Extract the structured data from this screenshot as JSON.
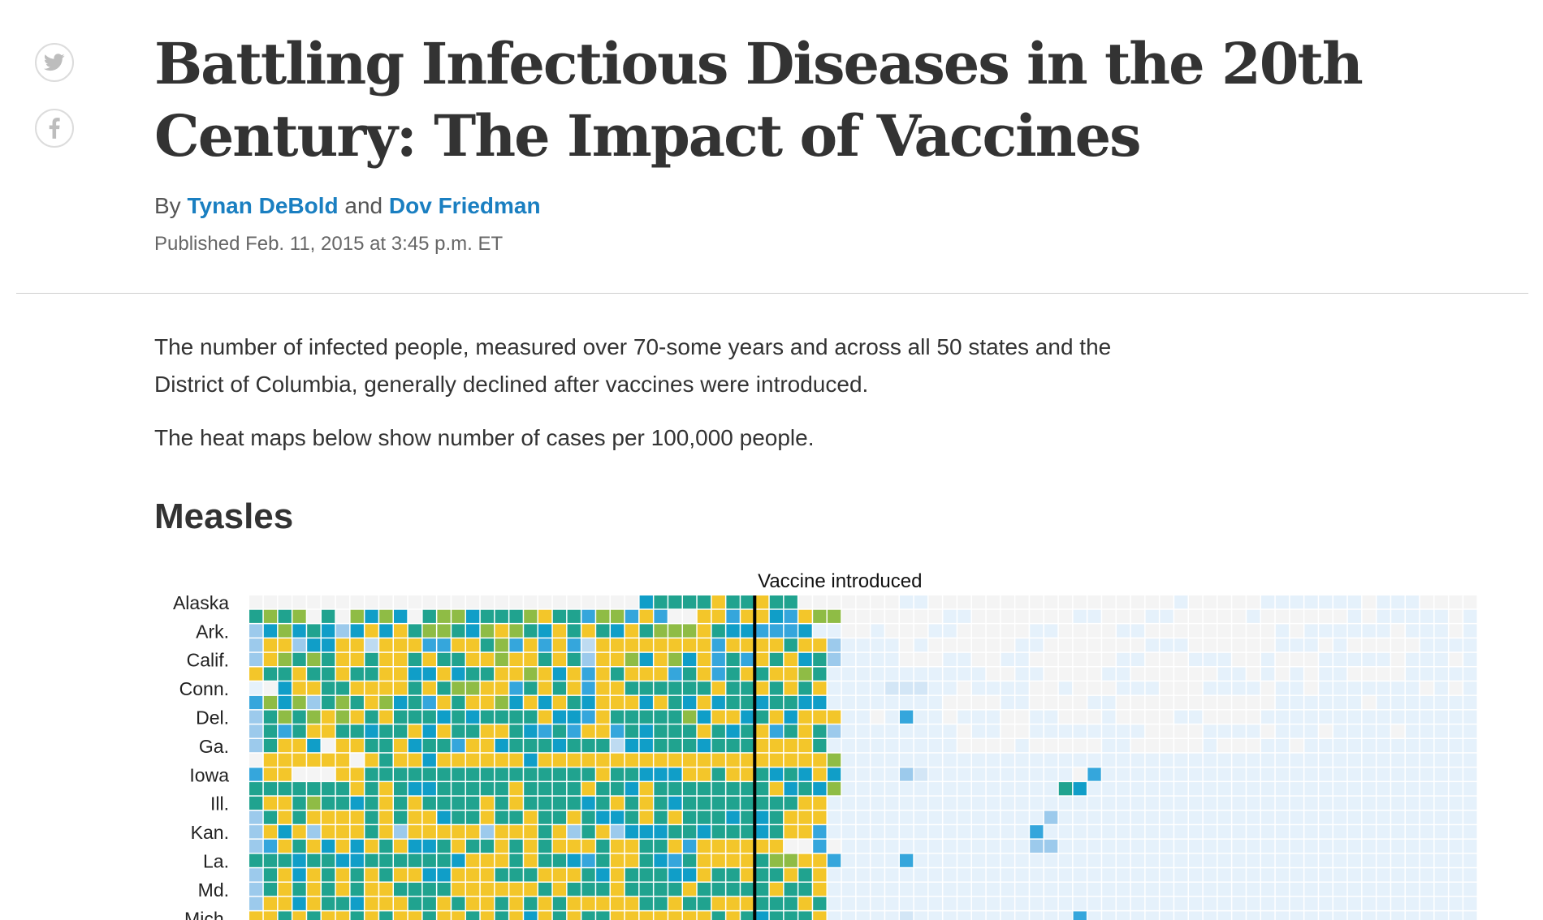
{
  "share": {
    "twitter_icon": "twitter-bird-icon",
    "facebook_icon": "facebook-f-icon"
  },
  "article": {
    "title": "Battling Infectious Diseases in the 20th Century: The Impact of Vaccines",
    "byline_prefix": "By",
    "author1": "Tynan DeBold",
    "byline_and": "and",
    "author2": "Dov Friedman",
    "published": "Published Feb. 11, 2015 at 3:45 p.m. ET",
    "intro": "The number of infected people, measured over 70-some years and across all 50 states and the District of Columbia, generally declined after vaccines were introduced.",
    "intro2": "The heat maps below show number of cases per 100,000 people.",
    "section_title": "Measles"
  },
  "colors": {
    "author_link": "#1a7fc1",
    "text": "#333333",
    "divider": "#cfcfcf",
    "scale": [
      "#f4f4f4",
      "#e5f1fb",
      "#d3e6f6",
      "#bedbf1",
      "#9ccaec",
      "#35a6dc",
      "#109ec8",
      "#20a38f",
      "#8fbc45",
      "#f3c62a",
      "#e7a62a"
    ],
    "vaccine_line": "#000000"
  },
  "chart_data": {
    "type": "heatmap",
    "title": "Measles",
    "annotation": "Vaccine introduced",
    "vaccine_after_column": 35,
    "columns_visible": 85,
    "row_labels": [
      "Alaska",
      "",
      "Ark.",
      "",
      "Calif.",
      "",
      "Conn.",
      "",
      "Del.",
      "",
      "Ga.",
      "",
      "Iowa",
      "",
      "Ill.",
      "",
      "Kan.",
      "",
      "La.",
      "",
      "Md.",
      "",
      "Mich.",
      ""
    ],
    "levels": [
      "00000000000000000000000000067777977977000000011000000000000000001000001111111011100001111111111111111111111",
      "78780708686078867778977588595009959965988000000011000000011000110000010000001011111011111111111111111111111",
      "46867646969788768987697976978889766555611001000110000011000011000000000101111110111011111111111111111111111",
      "49946699399955997859595399999999599997994111101000000110000000111000000111010000011111111111111111111111111",
      "49878799799797799899797499869869575979674111100011001100000011000111001000111110111011111111111111111111111",
      "97797797799669677998969597999579579799871111111111100110000110000001101010110000111111111111111111111111111",
      "10699779999797889957979599777777977979791111222110111100100011100011110110111111101011111111111111111111111",
      "58684787986759799869697699969769677677661111111100001100001100000000000111111011111111111111111111111111111",
      "47878989797776767777966597777786996796999110151101110011000100001100001111111111111111111111111111111111111",
      "47579977677969779976575995767779767957974111111110110011111111000011110111011110111111111111111111111111111",
      "47996099779677599677767773667776777999971111111110000100000110000010001101111111111111111111111111111111111",
      "09999990979969999996999999999999999999998111111111111111111111111111111111111111111111111111111111111111111",
      "59900099777777777777777797766699799767696111142111111111105111111111111111111111111111111111111111111111111",
      "77777779797667777797777977697777777796768111111111111111761111111111111111111111111111111111111111111111111",
      "79978776797977779797777679797677777777991111111111111111111111111111111111111111111111111111111111111111111",
      "47979999797996779779779766797977767679991111111111111114111111111111111111111111111111111111111111111111111",
      "49694999794999994999794794666776777679951111111111111151111111111111111111111111111111111111111111111111111",
      "45979696979667977979799979977959999990050111111111111144111111111111111111111111111111111111111111111111111",
      "77767766777777699979776579976579999788995111151111111111111111111111111111111111111111111111111111111111111",
      "47969797979966999777999769777669779779791111111111111111111111111111111111111111111111111111111111111111111",
      "47979797997777999999797779777797777797791111111111111111111111111111111111111111111111111111111111111111111",
      "49969776999779799797979999977977999777971111111111111111111111111111111111111111111111111111111111111111111",
      "99797997979979979796979779999999797677791111121111111111151111111111111111111111111111111111111111111111111",
      "47779979779977979779779799779777997979791111111111111111111111111111111111111111111111111111111111111111111"
    ]
  }
}
